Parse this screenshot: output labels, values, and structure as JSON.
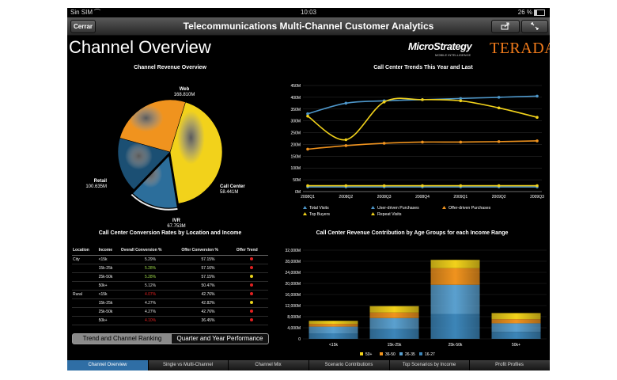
{
  "status_bar": {
    "carrier": "Sin SIM",
    "time": "10:03",
    "battery": "26 %"
  },
  "title_bar": {
    "close_label": "Cerrar",
    "title": "Telecommunications Multi-Channel Customer Analytics"
  },
  "page_title": "Channel Overview",
  "logos": {
    "microstrategy": "MicroStrategy",
    "microstrategy_tagline": "MOBILE INTELLIGENCE",
    "teradata": "TERADATA"
  },
  "toggle": {
    "options": [
      "Trend and Channel Ranking",
      "Quarter and Year Performance"
    ],
    "selected": "Trend and Channel Ranking"
  },
  "tabs": [
    "Channel Overview",
    "Single vs Multi-Channel",
    "Channel Mix",
    "Scenario Contributions",
    "Top Scenarios by Income",
    "Profit Profiles"
  ],
  "active_tab": "Channel Overview",
  "colors": {
    "accent": "#2f6ea5",
    "yellow": "#f2d21b",
    "orange": "#f0931e",
    "blue": "#3c85b8"
  },
  "chart_data": [
    {
      "type": "pie",
      "title": "Channel Revenue Overview",
      "slices": [
        {
          "name": "Web",
          "value_label": "168.810M",
          "value": 168.81,
          "color": "#f2d21b"
        },
        {
          "name": "Call Center",
          "value_label": "58.441M",
          "value": 58.441,
          "color": "#2c6e9b"
        },
        {
          "name": "IVR",
          "value_label": "67.753M",
          "value": 67.753,
          "color": "#1b4f73"
        },
        {
          "name": "Retail",
          "value_label": "100.635M",
          "value": 100.635,
          "color": "#f0931e"
        }
      ]
    },
    {
      "type": "line",
      "title": "Call Center Trends This Year and Last",
      "categories": [
        "2008Q1",
        "2008Q2",
        "2008Q3",
        "2008Q4",
        "2009Q1",
        "2009Q2",
        "2009Q3"
      ],
      "y_ticks": [
        "0M",
        "50M",
        "100M",
        "150M",
        "200M",
        "250M",
        "300M",
        "350M",
        "400M",
        "450M"
      ],
      "ylim": [
        0,
        450
      ],
      "series": [
        {
          "name": "Total Visits",
          "color": "#4d96c9",
          "values": [
            330,
            375,
            385,
            390,
            395,
            400,
            405
          ]
        },
        {
          "name": "User-driven Purchases",
          "color": "#4d96c9",
          "values": [
            20,
            20,
            20,
            20,
            20,
            20,
            20
          ]
        },
        {
          "name": "Offer-driven Purchases",
          "color": "#f0931e",
          "values": [
            180,
            195,
            205,
            210,
            210,
            212,
            215
          ]
        },
        {
          "name": "Top Buyers",
          "color": "#f2d21b",
          "values": [
            25,
            25,
            25,
            25,
            25,
            25,
            25
          ]
        },
        {
          "name": "Repeat Visits",
          "color": "#f2d21b",
          "values": [
            320,
            220,
            380,
            390,
            385,
            355,
            315
          ]
        }
      ]
    },
    {
      "type": "table",
      "title": "Call Center Conversion Rates by Location and Income",
      "columns": [
        "Location",
        "Income",
        "Overall Conversion %",
        "Offer Conversion %",
        "Offer Trend"
      ],
      "rows": [
        {
          "location": "City",
          "income": "<15k",
          "overall": "5.29%",
          "offer": "57.15%",
          "overall_color": "#dddddd",
          "trend_color": "#e02020"
        },
        {
          "location": "",
          "income": "15k-25k",
          "overall": "5.28%",
          "offer": "57.16%",
          "overall_color": "#9bd64a",
          "trend_color": "#e02020"
        },
        {
          "location": "",
          "income": "25k-50k",
          "overall": "5.28%",
          "offer": "57.15%",
          "overall_color": "#9bd64a",
          "trend_color": "#e8d21b"
        },
        {
          "location": "",
          "income": "50k+",
          "overall": "5.12%",
          "offer": "50.47%",
          "overall_color": "#dddddd",
          "trend_color": "#e02020"
        },
        {
          "location": "Rural",
          "income": "<15k",
          "overall": "4.07%",
          "offer": "42.76%",
          "overall_color": "#e02020",
          "trend_color": "#e02020"
        },
        {
          "location": "",
          "income": "15k-25k",
          "overall": "4.27%",
          "offer": "42.82%",
          "overall_color": "#dddddd",
          "trend_color": "#e8d21b"
        },
        {
          "location": "",
          "income": "25k-50k",
          "overall": "4.27%",
          "offer": "42.76%",
          "overall_color": "#dddddd",
          "trend_color": "#e02020"
        },
        {
          "location": "",
          "income": "50k+",
          "overall": "4.10%",
          "offer": "36.45%",
          "overall_color": "#e02020",
          "trend_color": "#e02020"
        }
      ]
    },
    {
      "type": "bar",
      "stacked": true,
      "title": "Call Center Revenue Contribution by Age Groups for each Income Range",
      "categories": [
        "<15k",
        "15k-25k",
        "25k-50k",
        "50k+"
      ],
      "y_ticks": [
        "0",
        "4,000M",
        "8,000M",
        "12,000M",
        "16,000M",
        "20,000M",
        "24,000M",
        "28,000M",
        "32,000M"
      ],
      "ylim": [
        0,
        32000
      ],
      "series": [
        {
          "name": "16-27",
          "color": "#3c85b8",
          "values": [
            2000,
            3500,
            9000,
            2500
          ]
        },
        {
          "name": "26-35",
          "color": "#5aa0cf",
          "values": [
            2400,
            4000,
            10500,
            3100
          ]
        },
        {
          "name": "36-50",
          "color": "#f0931e",
          "values": [
            1000,
            2000,
            6000,
            1500
          ]
        },
        {
          "name": "50+",
          "color": "#f2d21b",
          "values": [
            1100,
            2300,
            3000,
            2200
          ]
        }
      ]
    }
  ]
}
